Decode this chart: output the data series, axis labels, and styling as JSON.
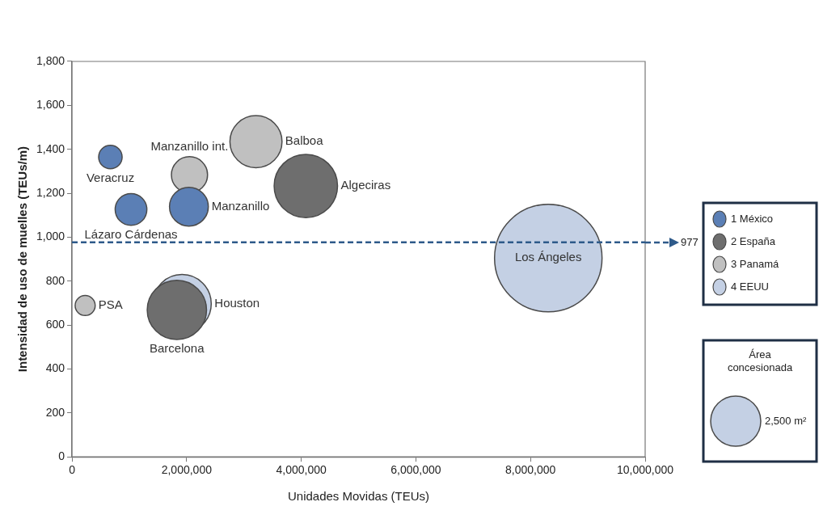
{
  "chart_data": {
    "type": "bubble",
    "xlabel": "Unidades Movidas (TEUs)",
    "ylabel": "Intensidad de uso de muelles (TEUs/m)",
    "xlim": [
      0,
      10000000
    ],
    "xticks": [
      0,
      {
        "value": 2000000,
        "label": "2,000,000"
      },
      {
        "value": 4000000,
        "label": "4,000,000"
      },
      {
        "value": 6000000,
        "label": "6,000,000"
      },
      {
        "value": 8000000,
        "label": "8,000,000"
      },
      {
        "value": 10000000,
        "label": "10,000,000"
      }
    ],
    "ylim": [
      0,
      1800
    ],
    "yticks": [
      0,
      200,
      400,
      600,
      800,
      {
        "value": 1000,
        "label": "1,000"
      },
      {
        "value": 1200,
        "label": "1,200"
      },
      {
        "value": 1400,
        "label": "1,400"
      },
      {
        "value": 1600,
        "label": "1,600"
      },
      {
        "value": 1800,
        "label": "1,800"
      }
    ],
    "grid": false,
    "legend": "right",
    "size_legend": [
      {
        "value": 2500,
        "label": "2,500 m²"
      }
    ],
    "series": [
      {
        "name": "1 México",
        "color": "#5b7fb5",
        "x": [
          670000,
          1030000,
          2040000
        ],
        "values": [
          1365,
          1126,
          1139
        ],
        "sizes": [
          550,
          1000,
          1500
        ]
      },
      {
        "name": "2 España",
        "color": "#6e6e6e",
        "x": [
          4080000,
          1830000
        ],
        "values": [
          1233,
          669
        ],
        "sizes": [
          4000,
          3500
        ]
      },
      {
        "name": "3 Panamá",
        "color": "#c0c0c0",
        "x": [
          2050000,
          3210000,
          230000
        ],
        "values": [
          1284,
          1435,
          689
        ],
        "sizes": [
          1300,
          2700,
          400
        ]
      },
      {
        "name": "4 EEUU",
        "color": "#c4d0e4",
        "x": [
          1920000,
          8310000
        ],
        "values": [
          697,
          905
        ],
        "sizes": [
          3400,
          11500
        ]
      }
    ],
    "ref_lines": [
      {
        "axis": "y",
        "value": 977,
        "label": "977",
        "color": "#2e5a8a",
        "line_style": "dashed"
      }
    ],
    "annotations": [
      "Área concesionada",
      {
        "text": "Veracruz",
        "x": 670000,
        "y": 1365
      },
      {
        "text": "Lázaro Cárdenas",
        "x": 1030000,
        "y": 1126
      },
      {
        "text": "Manzanillo",
        "x": 2040000,
        "y": 1139
      },
      {
        "text": "Manzanillo int.",
        "x": 2050000,
        "y": 1284
      },
      {
        "text": "Balboa",
        "x": 3210000,
        "y": 1435
      },
      {
        "text": "Algeciras",
        "x": 4080000,
        "y": 1233
      },
      {
        "text": "PSA",
        "x": 230000,
        "y": 689
      },
      {
        "text": "Houston",
        "x": 1920000,
        "y": 697
      },
      {
        "text": "Barcelona",
        "x": 1830000,
        "y": 669
      },
      {
        "text": "Los Ángeles",
        "x": 8310000,
        "y": 905
      }
    ]
  }
}
